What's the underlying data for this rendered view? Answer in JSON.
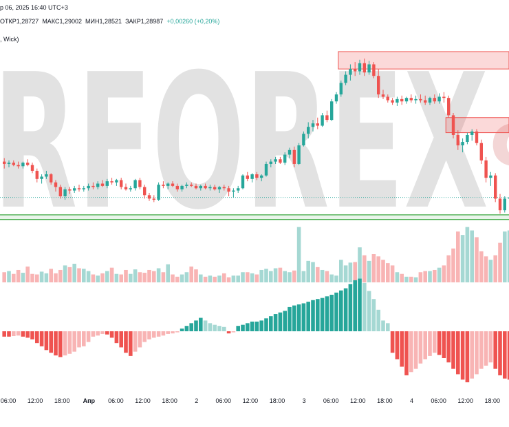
{
  "header": {
    "line1": "р 06, 2025 16:40 UTC+3",
    "ohlc": {
      "open_label": "ОТКР",
      "open": "1,28727",
      "high_label": "МАКС",
      "high": "1,29002",
      "low_label": "МИН",
      "low": "1,28521",
      "close_label": "ЗАКР",
      "close": "1,28987",
      "change": "+0,00260 (+0,20%)"
    },
    "line3": ", Wick)"
  },
  "watermark": {
    "text": "RFOREX",
    "tail": "c"
  },
  "colors": {
    "up": "#26a69a",
    "down": "#ef5350",
    "up_light": "#a5d8d3",
    "down_light": "#f8b4b4",
    "zone": "#ef5350",
    "support": "#4caf50"
  },
  "chart_data": {
    "type": "candlestick",
    "x_ticks": [
      "06:00",
      "12:00",
      "18:00",
      "Апр",
      "06:00",
      "12:00",
      "18:00",
      "2",
      "06:00",
      "12:00",
      "18:00",
      "3",
      "06:00",
      "12:00",
      "18:00",
      "4",
      "06:00",
      "12:00",
      "18:00"
    ],
    "candles": [
      [
        1.293,
        1.2933,
        1.2924,
        1.2928
      ],
      [
        1.2928,
        1.2931,
        1.2925,
        1.2929
      ],
      [
        1.2929,
        1.2931,
        1.2926,
        1.2927
      ],
      [
        1.2927,
        1.293,
        1.2924,
        1.2926
      ],
      [
        1.2926,
        1.293,
        1.2924,
        1.2929
      ],
      [
        1.2929,
        1.2932,
        1.2926,
        1.2927
      ],
      [
        1.2927,
        1.2929,
        1.292,
        1.2922
      ],
      [
        1.2922,
        1.2924,
        1.2912,
        1.2915
      ],
      [
        1.2915,
        1.2919,
        1.2911,
        1.2917
      ],
      [
        1.2917,
        1.2922,
        1.2915,
        1.2919
      ],
      [
        1.2919,
        1.292,
        1.291,
        1.2912
      ],
      [
        1.2912,
        1.2914,
        1.2904,
        1.2908
      ],
      [
        1.2908,
        1.291,
        1.2898,
        1.29
      ],
      [
        1.29,
        1.2908,
        1.2897,
        1.2906
      ],
      [
        1.2906,
        1.2908,
        1.2902,
        1.2905
      ],
      [
        1.2905,
        1.2909,
        1.2903,
        1.2907
      ],
      [
        1.2907,
        1.291,
        1.2904,
        1.2906
      ],
      [
        1.2906,
        1.2909,
        1.2904,
        1.2907
      ],
      [
        1.2907,
        1.2911,
        1.2905,
        1.2909
      ],
      [
        1.2909,
        1.2912,
        1.2906,
        1.2908
      ],
      [
        1.2908,
        1.2913,
        1.2906,
        1.2911
      ],
      [
        1.2911,
        1.2914,
        1.2908,
        1.2909
      ],
      [
        1.2909,
        1.2915,
        1.2907,
        1.2913
      ],
      [
        1.2913,
        1.2916,
        1.291,
        1.2912
      ],
      [
        1.2912,
        1.2915,
        1.2909,
        1.2914
      ],
      [
        1.2914,
        1.2916,
        1.2906,
        1.2908
      ],
      [
        1.2908,
        1.2911,
        1.2905,
        1.2906
      ],
      [
        1.2906,
        1.2909,
        1.2904,
        1.2907
      ],
      [
        1.2907,
        1.2915,
        1.2905,
        1.2914
      ],
      [
        1.2914,
        1.2916,
        1.2906,
        1.2908
      ],
      [
        1.2908,
        1.291,
        1.2898,
        1.2901
      ],
      [
        1.2901,
        1.2903,
        1.2896,
        1.2898
      ],
      [
        1.2898,
        1.2901,
        1.2895,
        1.2897
      ],
      [
        1.2897,
        1.2912,
        1.2896,
        1.291
      ],
      [
        1.291,
        1.2913,
        1.2907,
        1.2909
      ],
      [
        1.2909,
        1.2912,
        1.2906,
        1.2911
      ],
      [
        1.2911,
        1.2913,
        1.2908,
        1.2909
      ],
      [
        1.2909,
        1.2911,
        1.2904,
        1.2906
      ],
      [
        1.2906,
        1.291,
        1.2904,
        1.2909
      ],
      [
        1.2909,
        1.2912,
        1.2907,
        1.291
      ],
      [
        1.291,
        1.2912,
        1.2908,
        1.2909
      ],
      [
        1.2909,
        1.2911,
        1.2906,
        1.2907
      ],
      [
        1.2907,
        1.291,
        1.2905,
        1.2909
      ],
      [
        1.2909,
        1.2911,
        1.2906,
        1.2907
      ],
      [
        1.2907,
        1.291,
        1.2905,
        1.2908
      ],
      [
        1.2908,
        1.291,
        1.2905,
        1.2906
      ],
      [
        1.2906,
        1.2909,
        1.2903,
        1.2908
      ],
      [
        1.2908,
        1.291,
        1.2905,
        1.2907
      ],
      [
        1.2907,
        1.2909,
        1.29,
        1.2904
      ],
      [
        1.2904,
        1.2907,
        1.2899,
        1.2905
      ],
      [
        1.2905,
        1.2909,
        1.2903,
        1.2907
      ],
      [
        1.2907,
        1.2919,
        1.2906,
        1.2918
      ],
      [
        1.2918,
        1.2921,
        1.2913,
        1.2915
      ],
      [
        1.2915,
        1.292,
        1.2912,
        1.2919
      ],
      [
        1.2919,
        1.2921,
        1.2914,
        1.2916
      ],
      [
        1.2916,
        1.2919,
        1.2913,
        1.2918
      ],
      [
        1.2918,
        1.293,
        1.2917,
        1.2928
      ],
      [
        1.2928,
        1.2932,
        1.2925,
        1.293
      ],
      [
        1.293,
        1.2934,
        1.2928,
        1.2932
      ],
      [
        1.2932,
        1.2934,
        1.2928,
        1.2929
      ],
      [
        1.2929,
        1.2938,
        1.2927,
        1.2936
      ],
      [
        1.2936,
        1.2942,
        1.2933,
        1.294
      ],
      [
        1.294,
        1.2943,
        1.2925,
        1.2928
      ],
      [
        1.2928,
        1.2946,
        1.2927,
        1.2944
      ],
      [
        1.2944,
        1.2956,
        1.2943,
        1.2954
      ],
      [
        1.2954,
        1.2964,
        1.295,
        1.296
      ],
      [
        1.296,
        1.2966,
        1.2956,
        1.2963
      ],
      [
        1.2963,
        1.2968,
        1.2958,
        1.2961
      ],
      [
        1.2961,
        1.2972,
        1.296,
        1.297
      ],
      [
        1.297,
        1.2974,
        1.2964,
        1.2966
      ],
      [
        1.2966,
        1.2984,
        1.2965,
        1.2982
      ],
      [
        1.2982,
        1.299,
        1.298,
        1.2988
      ],
      [
        1.2988,
        1.3,
        1.2986,
        1.2998
      ],
      [
        1.2998,
        1.3008,
        1.2996,
        1.3005
      ],
      [
        1.3005,
        1.3014,
        1.3,
        1.301
      ],
      [
        1.301,
        1.3016,
        1.3004,
        1.3008
      ],
      [
        1.3008,
        1.3018,
        1.3005,
        1.3015
      ],
      [
        1.3015,
        1.3019,
        1.3004,
        1.3007
      ],
      [
        1.3007,
        1.3017,
        1.3005,
        1.3014
      ],
      [
        1.3014,
        1.3016,
        1.3002,
        1.3004
      ],
      [
        1.3004,
        1.301,
        1.2985,
        1.2988
      ],
      [
        1.2988,
        1.2992,
        1.2984,
        1.2986
      ],
      [
        1.2986,
        1.2988,
        1.2981,
        1.2983
      ],
      [
        1.2983,
        1.2985,
        1.2979,
        1.2981
      ],
      [
        1.2981,
        1.2986,
        1.2978,
        1.2984
      ],
      [
        1.2984,
        1.2987,
        1.2979,
        1.2982
      ],
      [
        1.2982,
        1.2986,
        1.298,
        1.2985
      ],
      [
        1.2985,
        1.2988,
        1.2981,
        1.2983
      ],
      [
        1.2983,
        1.2987,
        1.298,
        1.2984
      ],
      [
        1.2984,
        1.2988,
        1.2981,
        1.2983
      ],
      [
        1.2983,
        1.2987,
        1.2979,
        1.2981
      ],
      [
        1.2981,
        1.2986,
        1.2979,
        1.2985
      ],
      [
        1.2985,
        1.2988,
        1.298,
        1.2982
      ],
      [
        1.2982,
        1.2989,
        1.298,
        1.2986
      ],
      [
        1.2986,
        1.299,
        1.2981,
        1.2985
      ],
      [
        1.2985,
        1.2987,
        1.2968,
        1.297
      ],
      [
        1.297,
        1.2972,
        1.295,
        1.2953
      ],
      [
        1.2953,
        1.2957,
        1.294,
        1.2944
      ],
      [
        1.2944,
        1.295,
        1.2938,
        1.2947
      ],
      [
        1.2947,
        1.2955,
        1.2945,
        1.2953
      ],
      [
        1.2953,
        1.2958,
        1.2948,
        1.2956
      ],
      [
        1.2956,
        1.2958,
        1.2944,
        1.2946
      ],
      [
        1.2946,
        1.2949,
        1.2928,
        1.2931
      ],
      [
        1.2931,
        1.2934,
        1.2912,
        1.2916
      ],
      [
        1.2916,
        1.2921,
        1.2909,
        1.2918
      ],
      [
        1.2918,
        1.292,
        1.2895,
        1.2898
      ],
      [
        1.2898,
        1.2902,
        1.2885,
        1.2888
      ],
      [
        1.2888,
        1.29,
        1.2886,
        1.2898
      ],
      [
        1.2898,
        1.2903,
        1.2893,
        1.2899
      ]
    ],
    "volume_max": 100,
    "volume": [
      18,
      20,
      15,
      22,
      17,
      28,
      15,
      14,
      19,
      16,
      24,
      16,
      22,
      30,
      27,
      33,
      25,
      24,
      20,
      14,
      12,
      16,
      20,
      26,
      15,
      14,
      22,
      15,
      23,
      18,
      17,
      22,
      20,
      25,
      18,
      32,
      14,
      10,
      14,
      18,
      28,
      23,
      14,
      10,
      12,
      10,
      12,
      16,
      9,
      12,
      12,
      18,
      18,
      16,
      14,
      22,
      24,
      20,
      25,
      26,
      20,
      18,
      21,
      98,
      20,
      38,
      36,
      27,
      22,
      20,
      14,
      12,
      40,
      30,
      35,
      36,
      62,
      48,
      38,
      50,
      46,
      40,
      34,
      30,
      18,
      15,
      10,
      10,
      9,
      18,
      20,
      20,
      22,
      26,
      30,
      48,
      60,
      90,
      84,
      98,
      92,
      80,
      55,
      46,
      40,
      48,
      70,
      90,
      92
    ],
    "histogram_max": 100,
    "histogram": [
      -10,
      -10,
      -9,
      -8,
      -10,
      -12,
      -15,
      -22,
      -28,
      -35,
      -40,
      -45,
      -48,
      -45,
      -42,
      -38,
      -30,
      -28,
      -20,
      -10,
      -8,
      -5,
      -6,
      -12,
      -22,
      -30,
      -40,
      -46,
      -38,
      -30,
      -20,
      -15,
      -12,
      -10,
      -8,
      -5,
      -4,
      -2,
      5,
      10,
      15,
      20,
      25,
      20,
      15,
      12,
      10,
      8,
      -4,
      -2,
      10,
      12,
      15,
      18,
      18,
      20,
      24,
      28,
      32,
      35,
      38,
      45,
      48,
      50,
      52,
      55,
      58,
      60,
      62,
      65,
      68,
      72,
      76,
      80,
      88,
      95,
      98,
      90,
      75,
      60,
      40,
      20,
      15,
      -40,
      -52,
      -66,
      -82,
      -76,
      -70,
      -60,
      -52,
      -46,
      -40,
      -44,
      -50,
      -58,
      -70,
      -80,
      -90,
      -95,
      -88,
      -80,
      -70,
      -64,
      -58,
      -70,
      -82,
      -88,
      -90
    ],
    "zones": [
      {
        "price_top": 1.3025,
        "price_bottom": 1.301,
        "start_index": 72
      },
      {
        "price_top": 1.2968,
        "price_bottom": 1.2955,
        "start_index": 95
      }
    ],
    "support_lines": [
      1.2884,
      1.288
    ],
    "last_price_line": 1.2899
  }
}
